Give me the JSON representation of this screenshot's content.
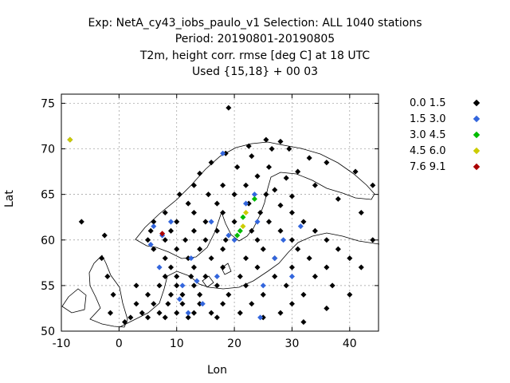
{
  "titles": [
    "Exp: NetA_cy43_iobs_paulo_v1   Selection: ALL   1040 stations",
    "Period: 20190801-20190805",
    "T2m, height corr. rmse [deg C] at  18 UTC",
    "Used {15,18} + 00 03"
  ],
  "chart_data": {
    "type": "scatter",
    "xlabel": "Lon",
    "ylabel": "Lat",
    "xlim": [
      -10,
      45
    ],
    "ylim": [
      50,
      76
    ],
    "xticks": [
      -10,
      0,
      10,
      20,
      30,
      40
    ],
    "yticks": [
      50,
      55,
      60,
      65,
      70,
      75
    ],
    "grid": true,
    "legend_position": "right",
    "series": [
      {
        "name": "0.0 1.5",
        "color": "#000000",
        "points": [
          [
            19.0,
            74.5
          ],
          [
            -8.5,
            71.0
          ],
          [
            25.5,
            71.0
          ],
          [
            28.0,
            70.8
          ],
          [
            22.5,
            70.3
          ],
          [
            26.5,
            70.0
          ],
          [
            29.5,
            70.0
          ],
          [
            18.5,
            69.5
          ],
          [
            23.0,
            69.2
          ],
          [
            16.0,
            68.5
          ],
          [
            20.5,
            68.0
          ],
          [
            26.0,
            68.0
          ],
          [
            14.0,
            67.3
          ],
          [
            24.0,
            67.0
          ],
          [
            29.0,
            66.8
          ],
          [
            13.0,
            66.0
          ],
          [
            18.0,
            66.0
          ],
          [
            22.0,
            66.0
          ],
          [
            27.0,
            65.5
          ],
          [
            10.5,
            65.0
          ],
          [
            15.5,
            65.0
          ],
          [
            20.0,
            65.0
          ],
          [
            25.5,
            65.0
          ],
          [
            30.0,
            64.8
          ],
          [
            12.0,
            64.0
          ],
          [
            17.0,
            64.0
          ],
          [
            22.5,
            64.0
          ],
          [
            28.0,
            63.8
          ],
          [
            8.0,
            63.0
          ],
          [
            13.0,
            63.0
          ],
          [
            18.0,
            63.0
          ],
          [
            24.5,
            63.0
          ],
          [
            30.0,
            63.0
          ],
          [
            6.0,
            62.0
          ],
          [
            10.0,
            62.0
          ],
          [
            15.0,
            62.0
          ],
          [
            20.0,
            62.0
          ],
          [
            26.0,
            62.0
          ],
          [
            32.0,
            62.0
          ],
          [
            5.5,
            61.0
          ],
          [
            9.0,
            61.0
          ],
          [
            13.0,
            61.0
          ],
          [
            17.0,
            61.0
          ],
          [
            23.0,
            61.0
          ],
          [
            28.0,
            61.0
          ],
          [
            34.0,
            61.0
          ],
          [
            5.0,
            60.0
          ],
          [
            8.0,
            60.0
          ],
          [
            11.5,
            60.0
          ],
          [
            15.0,
            60.0
          ],
          [
            18.5,
            60.0
          ],
          [
            24.0,
            60.0
          ],
          [
            30.0,
            60.0
          ],
          [
            36.0,
            60.0
          ],
          [
            6.0,
            59.0
          ],
          [
            10.0,
            59.0
          ],
          [
            14.0,
            59.0
          ],
          [
            18.0,
            59.0
          ],
          [
            25.0,
            59.0
          ],
          [
            31.0,
            59.0
          ],
          [
            38.0,
            59.0
          ],
          [
            8.0,
            58.0
          ],
          [
            12.0,
            58.0
          ],
          [
            16.0,
            58.0
          ],
          [
            22.0,
            58.0
          ],
          [
            27.0,
            58.0
          ],
          [
            33.0,
            58.0
          ],
          [
            40.0,
            58.0
          ],
          [
            9.0,
            57.0
          ],
          [
            13.0,
            57.0
          ],
          [
            18.0,
            57.0
          ],
          [
            24.0,
            57.0
          ],
          [
            30.0,
            57.0
          ],
          [
            36.0,
            57.0
          ],
          [
            8.0,
            56.0
          ],
          [
            10.0,
            56.0
          ],
          [
            12.5,
            56.0
          ],
          [
            15.0,
            56.0
          ],
          [
            21.0,
            56.0
          ],
          [
            27.0,
            56.0
          ],
          [
            34.0,
            56.0
          ],
          [
            3.0,
            55.0
          ],
          [
            7.0,
            55.0
          ],
          [
            10.0,
            55.0
          ],
          [
            13.0,
            55.0
          ],
          [
            17.0,
            55.0
          ],
          [
            22.0,
            55.0
          ],
          [
            29.0,
            55.0
          ],
          [
            37.0,
            55.0
          ],
          [
            5.0,
            54.0
          ],
          [
            9.0,
            54.0
          ],
          [
            11.0,
            54.0
          ],
          [
            14.0,
            54.0
          ],
          [
            19.0,
            54.0
          ],
          [
            25.0,
            54.0
          ],
          [
            32.0,
            54.0
          ],
          [
            3.0,
            53.0
          ],
          [
            6.0,
            53.0
          ],
          [
            8.5,
            53.0
          ],
          [
            11.0,
            53.0
          ],
          [
            14.0,
            53.0
          ],
          [
            18.0,
            53.0
          ],
          [
            23.0,
            53.0
          ],
          [
            30.0,
            53.0
          ],
          [
            4.0,
            52.0
          ],
          [
            7.0,
            52.0
          ],
          [
            10.0,
            52.0
          ],
          [
            13.0,
            52.0
          ],
          [
            16.0,
            52.0
          ],
          [
            21.0,
            52.0
          ],
          [
            28.0,
            52.0
          ],
          [
            2.0,
            51.5
          ],
          [
            5.0,
            51.5
          ],
          [
            8.0,
            51.5
          ],
          [
            12.0,
            51.5
          ],
          [
            17.0,
            51.5
          ],
          [
            25.0,
            51.5
          ],
          [
            -1.5,
            52.0
          ],
          [
            -1.0,
            54.0
          ],
          [
            -2.0,
            56.0
          ],
          [
            -3.0,
            58.0
          ],
          [
            -2.5,
            60.5
          ],
          [
            -6.5,
            62.0
          ],
          [
            1.0,
            51.0
          ],
          [
            32.0,
            51.0
          ],
          [
            36.0,
            52.5
          ],
          [
            40.0,
            54.0
          ],
          [
            42.0,
            57.0
          ],
          [
            44.0,
            60.0
          ],
          [
            42.0,
            63.0
          ],
          [
            38.0,
            64.5
          ],
          [
            34.0,
            66.0
          ],
          [
            31.0,
            67.5
          ],
          [
            33.0,
            69.0
          ],
          [
            36.0,
            68.5
          ],
          [
            41.0,
            67.5
          ],
          [
            44.0,
            66.0
          ]
        ]
      },
      {
        "name": "1.5 3.0",
        "color": "#3366dd",
        "points": [
          [
            6.0,
            61.5
          ],
          [
            7.5,
            60.5
          ],
          [
            5.5,
            59.5
          ],
          [
            9.0,
            62.0
          ],
          [
            12.5,
            58.0
          ],
          [
            11.0,
            55.0
          ],
          [
            13.5,
            55.5
          ],
          [
            10.5,
            53.5
          ],
          [
            12.0,
            52.0
          ],
          [
            14.5,
            53.0
          ],
          [
            19.0,
            60.5
          ],
          [
            20.0,
            60.0
          ],
          [
            22.0,
            64.0
          ],
          [
            23.5,
            65.0
          ],
          [
            24.5,
            51.5
          ],
          [
            25.0,
            55.0
          ],
          [
            27.0,
            58.0
          ],
          [
            30.0,
            56.0
          ],
          [
            31.5,
            61.5
          ],
          [
            28.5,
            60.0
          ],
          [
            18.0,
            69.5
          ],
          [
            16.0,
            62.0
          ],
          [
            7.0,
            57.0
          ],
          [
            17.0,
            56.0
          ],
          [
            24.0,
            62.0
          ]
        ]
      },
      {
        "name": "3.0 4.5",
        "color": "#00bb00",
        "points": [
          [
            21.0,
            61.0
          ],
          [
            21.5,
            62.5
          ],
          [
            23.5,
            64.5
          ],
          [
            20.5,
            60.5
          ]
        ]
      },
      {
        "name": "4.5 6.0",
        "color": "#cccc00",
        "points": [
          [
            -8.5,
            71.0
          ],
          [
            21.5,
            61.5
          ],
          [
            22.0,
            63.0
          ]
        ]
      },
      {
        "name": "7.6 9.1",
        "color": "#aa0000",
        "points": [
          [
            7.5,
            60.7
          ]
        ]
      }
    ]
  }
}
